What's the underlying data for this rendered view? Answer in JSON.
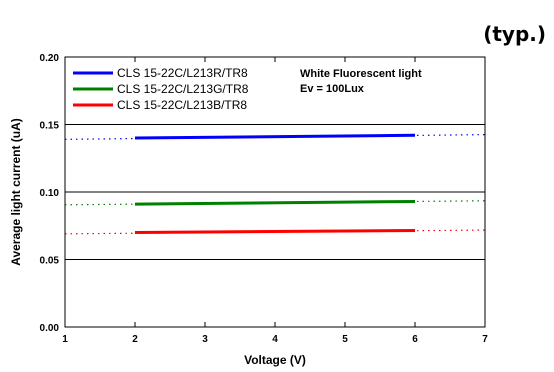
{
  "header": {
    "typ_label": "(typ.)"
  },
  "chart_data": {
    "type": "line",
    "title": "",
    "xlabel": "Voltage (V)",
    "ylabel": "Average light current (uA)",
    "xlim": [
      1,
      7
    ],
    "ylim": [
      0,
      0.2
    ],
    "xticks": [
      1,
      2,
      3,
      4,
      5,
      6,
      7
    ],
    "yticks": [
      0,
      0.05,
      0.1,
      0.15,
      0.2
    ],
    "ytick_labels": [
      "0.00",
      "0.05",
      "0.10",
      "0.15",
      "0.20"
    ],
    "grid": "horizontal",
    "legend_position": "top-left",
    "annotations": [
      "White Fluorescent light",
      "Ev = 100Lux"
    ],
    "series": [
      {
        "name": "CLS 15-22C/L213R/TR8",
        "color": "#0000ff",
        "x": [
          2,
          6
        ],
        "y": [
          0.14,
          0.142
        ],
        "dotted_x": [
          1,
          7
        ],
        "dotted_y": [
          0.139,
          0.1425
        ]
      },
      {
        "name": "CLS 15-22C/L213G/TR8",
        "color": "#008000",
        "x": [
          2,
          6
        ],
        "y": [
          0.091,
          0.093
        ],
        "dotted_x": [
          1,
          7
        ],
        "dotted_y": [
          0.0905,
          0.0935
        ]
      },
      {
        "name": "CLS 15-22C/L213B/TR8",
        "color": "#ff0000",
        "x": [
          2,
          6
        ],
        "y": [
          0.07,
          0.0715
        ],
        "dotted_x": [
          1,
          7
        ],
        "dotted_y": [
          0.069,
          0.0718
        ]
      }
    ]
  }
}
